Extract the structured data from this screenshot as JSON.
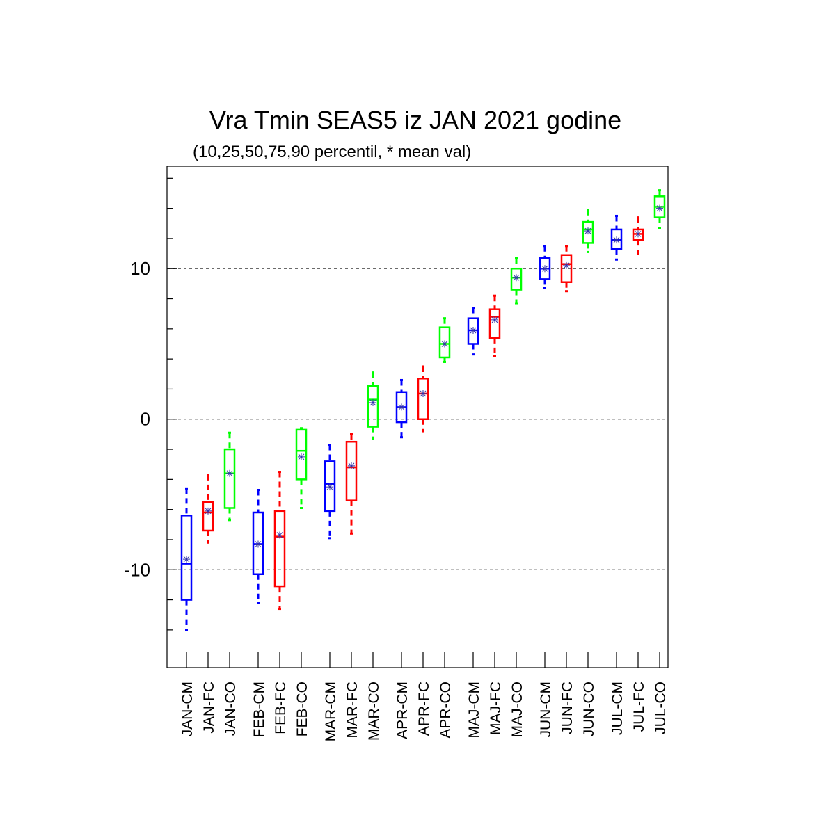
{
  "chart_data": {
    "type": "boxplot",
    "title": "Vra Tmin SEAS5 iz JAN 2021 godine",
    "subtitle": "(10,25,50,75,90 percentil, * mean val)",
    "xlabel": "",
    "ylabel": "",
    "ylim": [
      -16.5,
      16.8
    ],
    "yticks": [
      -10,
      0,
      10
    ],
    "yticklabels": [
      "-10",
      "0",
      "10"
    ],
    "yminor_ticks": [
      -14,
      -12,
      -8,
      -6,
      -4,
      -2,
      2,
      4,
      6,
      8,
      12,
      14,
      16
    ],
    "grid_lines_y": [
      -10,
      0,
      10
    ],
    "legend": "none",
    "colors": {
      "CM": "#0000ff",
      "FC": "#ff0000",
      "CO": "#00ff00",
      "mean_marker": "#3333aa",
      "grid": "#555555"
    },
    "boxes": [
      {
        "label": "JAN-CM",
        "group": "CM",
        "p10": -14.0,
        "p25": -12.0,
        "p50": -9.6,
        "p75": -6.4,
        "p90": -4.6,
        "mean": -9.3
      },
      {
        "label": "JAN-FC",
        "group": "FC",
        "p10": -8.2,
        "p25": -7.4,
        "p50": -6.2,
        "p75": -5.5,
        "p90": -3.7,
        "mean": -6.1
      },
      {
        "label": "JAN-CO",
        "group": "CO",
        "p10": -6.7,
        "p25": -5.9,
        "p50": -3.6,
        "p75": -2.0,
        "p90": -0.9,
        "mean": -3.6
      },
      {
        "label": "FEB-CM",
        "group": "CM",
        "p10": -12.2,
        "p25": -10.3,
        "p50": -8.3,
        "p75": -6.2,
        "p90": -4.7,
        "mean": -8.3
      },
      {
        "label": "FEB-FC",
        "group": "FC",
        "p10": -12.6,
        "p25": -11.1,
        "p50": -7.8,
        "p75": -6.1,
        "p90": -3.5,
        "mean": -7.7
      },
      {
        "label": "FEB-CO",
        "group": "CO",
        "p10": -5.9,
        "p25": -4.0,
        "p50": -2.1,
        "p75": -0.7,
        "p90": -0.6,
        "mean": -2.5
      },
      {
        "label": "MAR-CM",
        "group": "CM",
        "p10": -7.9,
        "p25": -6.1,
        "p50": -4.3,
        "p75": -2.8,
        "p90": -1.7,
        "mean": -4.5
      },
      {
        "label": "MAR-FC",
        "group": "FC",
        "p10": -7.6,
        "p25": -5.4,
        "p50": -3.2,
        "p75": -1.5,
        "p90": -1.0,
        "mean": -3.1
      },
      {
        "label": "MAR-CO",
        "group": "CO",
        "p10": -1.3,
        "p25": -0.5,
        "p50": 1.3,
        "p75": 2.2,
        "p90": 3.1,
        "mean": 1.1
      },
      {
        "label": "APR-CM",
        "group": "CM",
        "p10": -1.2,
        "p25": -0.2,
        "p50": 0.8,
        "p75": 1.8,
        "p90": 2.6,
        "mean": 0.8
      },
      {
        "label": "APR-FC",
        "group": "FC",
        "p10": -0.8,
        "p25": 0.0,
        "p50": 1.7,
        "p75": 2.7,
        "p90": 3.5,
        "mean": 1.7
      },
      {
        "label": "APR-CO",
        "group": "CO",
        "p10": 3.8,
        "p25": 4.1,
        "p50": 5.0,
        "p75": 6.1,
        "p90": 6.7,
        "mean": 5.0
      },
      {
        "label": "MAJ-CM",
        "group": "CM",
        "p10": 4.3,
        "p25": 5.0,
        "p50": 5.9,
        "p75": 6.7,
        "p90": 7.4,
        "mean": 5.9
      },
      {
        "label": "MAJ-FC",
        "group": "FC",
        "p10": 4.2,
        "p25": 5.4,
        "p50": 6.8,
        "p75": 7.3,
        "p90": 8.2,
        "mean": 6.6
      },
      {
        "label": "MAJ-CO",
        "group": "CO",
        "p10": 7.7,
        "p25": 8.6,
        "p50": 9.4,
        "p75": 10.0,
        "p90": 10.7,
        "mean": 9.4
      },
      {
        "label": "JUN-CM",
        "group": "CM",
        "p10": 8.7,
        "p25": 9.3,
        "p50": 10.0,
        "p75": 10.7,
        "p90": 11.5,
        "mean": 10.0
      },
      {
        "label": "JUN-FC",
        "group": "FC",
        "p10": 8.5,
        "p25": 9.1,
        "p50": 10.3,
        "p75": 10.9,
        "p90": 11.5,
        "mean": 10.2
      },
      {
        "label": "JUN-CO",
        "group": "CO",
        "p10": 11.1,
        "p25": 11.7,
        "p50": 12.6,
        "p75": 13.1,
        "p90": 13.9,
        "mean": 12.5
      },
      {
        "label": "JUL-CM",
        "group": "CM",
        "p10": 10.6,
        "p25": 11.3,
        "p50": 11.9,
        "p75": 12.6,
        "p90": 13.5,
        "mean": 11.9
      },
      {
        "label": "JUL-FC",
        "group": "FC",
        "p10": 11.0,
        "p25": 11.9,
        "p50": 12.3,
        "p75": 12.6,
        "p90": 13.4,
        "mean": 12.3
      },
      {
        "label": "JUL-CO",
        "group": "CO",
        "p10": 12.7,
        "p25": 13.4,
        "p50": 14.1,
        "p75": 14.8,
        "p90": 15.2,
        "mean": 14.0
      }
    ]
  }
}
